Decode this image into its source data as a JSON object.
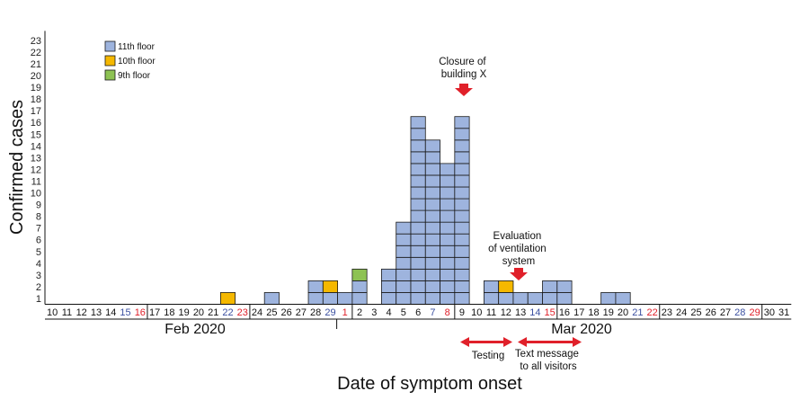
{
  "chart_data": {
    "type": "bar",
    "stacked_cells": true,
    "ylabel": "Confirmed cases",
    "xlabel": "Date of symptom onset",
    "ylim": [
      0,
      23
    ],
    "yticks": [
      1,
      2,
      3,
      4,
      5,
      6,
      7,
      8,
      9,
      10,
      11,
      12,
      13,
      14,
      15,
      16,
      17,
      18,
      19,
      20,
      21,
      22,
      23
    ],
    "months": [
      "Feb 2020",
      "Mar 2020"
    ],
    "colors": {
      "11th floor": "#9eb4de",
      "10th floor": "#f5b800",
      "9th floor": "#8dc253",
      "weekday": "#111111",
      "saturday": "#3a4fa0",
      "sunday": "#e0202a",
      "arrow": "#e0202a"
    },
    "legend": [
      "11th floor",
      "10th floor",
      "9th floor"
    ],
    "categories": [
      {
        "day": "10",
        "type": "weekday"
      },
      {
        "day": "11",
        "type": "weekday"
      },
      {
        "day": "12",
        "type": "weekday"
      },
      {
        "day": "13",
        "type": "weekday"
      },
      {
        "day": "14",
        "type": "weekday"
      },
      {
        "day": "15",
        "type": "saturday"
      },
      {
        "day": "16",
        "type": "sunday"
      },
      {
        "day": "17",
        "type": "weekday"
      },
      {
        "day": "18",
        "type": "weekday"
      },
      {
        "day": "19",
        "type": "weekday"
      },
      {
        "day": "20",
        "type": "weekday"
      },
      {
        "day": "21",
        "type": "weekday"
      },
      {
        "day": "22",
        "type": "saturday"
      },
      {
        "day": "23",
        "type": "sunday"
      },
      {
        "day": "24",
        "type": "weekday"
      },
      {
        "day": "25",
        "type": "weekday"
      },
      {
        "day": "26",
        "type": "weekday"
      },
      {
        "day": "27",
        "type": "weekday"
      },
      {
        "day": "28",
        "type": "weekday"
      },
      {
        "day": "29",
        "type": "saturday"
      },
      {
        "day": "1",
        "type": "sunday"
      },
      {
        "day": "2",
        "type": "weekday"
      },
      {
        "day": "3",
        "type": "weekday"
      },
      {
        "day": "4",
        "type": "weekday"
      },
      {
        "day": "5",
        "type": "weekday"
      },
      {
        "day": "6",
        "type": "weekday"
      },
      {
        "day": "7",
        "type": "saturday"
      },
      {
        "day": "8",
        "type": "sunday"
      },
      {
        "day": "9",
        "type": "weekday"
      },
      {
        "day": "10",
        "type": "weekday"
      },
      {
        "day": "11",
        "type": "weekday"
      },
      {
        "day": "12",
        "type": "weekday"
      },
      {
        "day": "13",
        "type": "weekday"
      },
      {
        "day": "14",
        "type": "saturday"
      },
      {
        "day": "15",
        "type": "sunday"
      },
      {
        "day": "16",
        "type": "weekday"
      },
      {
        "day": "17",
        "type": "weekday"
      },
      {
        "day": "18",
        "type": "weekday"
      },
      {
        "day": "19",
        "type": "weekday"
      },
      {
        "day": "20",
        "type": "weekday"
      },
      {
        "day": "21",
        "type": "saturday"
      },
      {
        "day": "22",
        "type": "sunday"
      },
      {
        "day": "23",
        "type": "weekday"
      },
      {
        "day": "24",
        "type": "weekday"
      },
      {
        "day": "25",
        "type": "weekday"
      },
      {
        "day": "26",
        "type": "weekday"
      },
      {
        "day": "27",
        "type": "weekday"
      },
      {
        "day": "28",
        "type": "saturday"
      },
      {
        "day": "29",
        "type": "sunday"
      },
      {
        "day": "30",
        "type": "weekday"
      },
      {
        "day": "31",
        "type": "weekday"
      }
    ],
    "series": [
      {
        "name": "11th floor",
        "values": [
          0,
          0,
          0,
          0,
          0,
          0,
          0,
          0,
          0,
          0,
          0,
          0,
          0,
          0,
          0,
          1,
          0,
          0,
          2,
          1,
          1,
          2,
          0,
          3,
          7,
          16,
          14,
          12,
          16,
          0,
          2,
          1,
          1,
          1,
          2,
          2,
          0,
          0,
          1,
          1,
          0,
          0,
          0,
          0,
          0,
          0,
          0,
          0,
          0,
          0,
          0
        ]
      },
      {
        "name": "10th floor",
        "values": [
          0,
          0,
          0,
          0,
          0,
          0,
          0,
          0,
          0,
          0,
          0,
          0,
          1,
          0,
          0,
          0,
          0,
          0,
          0,
          1,
          0,
          0,
          0,
          0,
          0,
          0,
          0,
          0,
          0,
          0,
          0,
          1,
          0,
          0,
          0,
          0,
          0,
          0,
          0,
          0,
          0,
          0,
          0,
          0,
          0,
          0,
          0,
          0,
          0,
          0,
          0
        ]
      },
      {
        "name": "9th floor",
        "values": [
          0,
          0,
          0,
          0,
          0,
          0,
          0,
          0,
          0,
          0,
          0,
          0,
          0,
          0,
          0,
          0,
          0,
          0,
          0,
          0,
          0,
          1,
          0,
          0,
          0,
          0,
          0,
          0,
          0,
          0,
          0,
          0,
          0,
          0,
          0,
          0,
          0,
          0,
          0,
          0,
          0,
          0,
          0,
          0,
          0,
          0,
          0,
          0,
          0,
          0,
          0
        ]
      }
    ],
    "annotations": [
      {
        "text": [
          "Closure of",
          "building X"
        ],
        "at_index": 28,
        "type": "down-arrow"
      },
      {
        "text": [
          "Evaluation",
          "of ventilation",
          "system"
        ],
        "at_index": 31,
        "type": "down-arrow"
      },
      {
        "text": [
          "Testing"
        ],
        "from_index": 28,
        "to_index": 31,
        "type": "double-arrow"
      },
      {
        "text": [
          "Text message",
          "to all visitors"
        ],
        "from_index": 31,
        "to_index": 35,
        "type": "double-arrow"
      }
    ]
  }
}
